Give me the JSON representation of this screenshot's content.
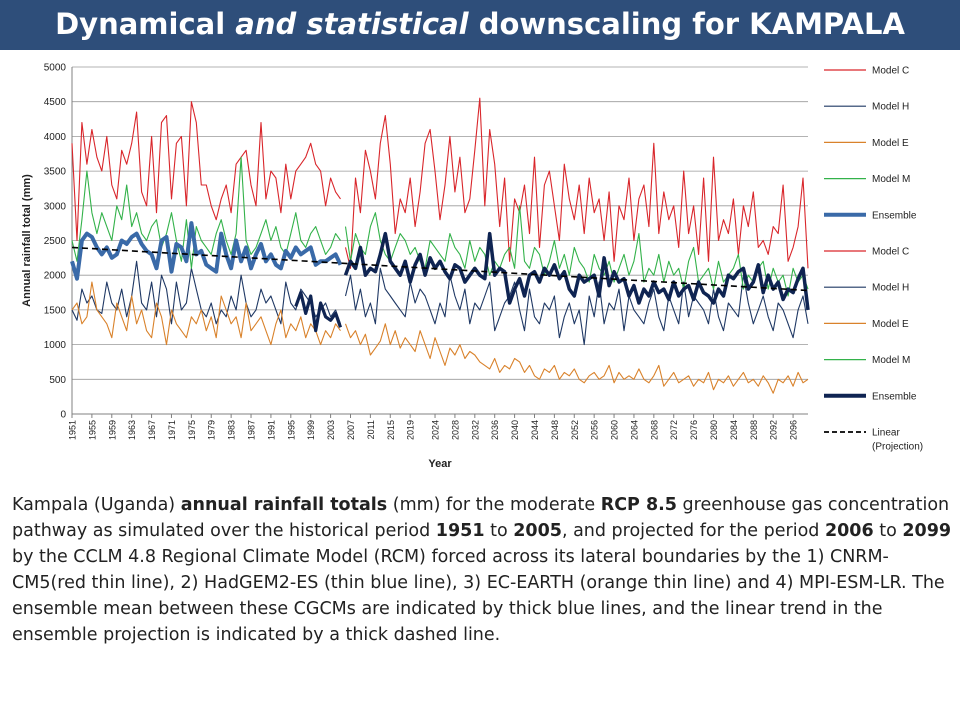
{
  "title": {
    "part1": "Dynamical ",
    "part2": "and statistical",
    "part3": " downscaling for KAMPALA"
  },
  "caption": {
    "t1": "Kampala (Uganda) ",
    "b1": "annual rainfall totals",
    "t2": " (mm) for the moderate ",
    "b2": "RCP 8.5",
    "t3": " greenhouse gas concentration pathway as simulated over the historical period ",
    "b3": "1951",
    "t4": " to ",
    "b4": "2005",
    "t5": ", and projected for the period ",
    "b5": "2006",
    "t6": " to ",
    "b6": "2099",
    "t7": " by the CCLM 4.8 Regional Climate Model (RCM) forced across its lateral boundaries by the 1) CNRM-CM5(red thin line), 2) HadGEM2-ES (thin blue line), 3) EC-EARTH (orange thin line) and 4) MPI-ESM-LR. The ensemble mean between these CGCMs are indicated by thick blue lines, and the linear trend in the ensemble projection is indicated by a thick dashed line."
  },
  "chart_data": {
    "type": "line",
    "xlabel": "Year",
    "ylabel": "Annual rainfall total (mm)",
    "xlim": [
      1951,
      2099
    ],
    "ylim": [
      0,
      5000
    ],
    "yticks": [
      0,
      500,
      1000,
      1500,
      2000,
      2500,
      3000,
      3500,
      4000,
      4500,
      5000
    ],
    "xticks": [
      1951,
      1955,
      1959,
      1963,
      1967,
      1971,
      1975,
      1979,
      1983,
      1987,
      1991,
      1995,
      1999,
      2003,
      2007,
      2011,
      2015,
      2019,
      2024,
      2028,
      2032,
      2036,
      2040,
      2044,
      2048,
      2052,
      2056,
      2060,
      2064,
      2068,
      2072,
      2076,
      2080,
      2084,
      2088,
      2092,
      2096
    ],
    "grid": "horizontal",
    "legend_position": "right",
    "legend": [
      {
        "name": "Model C",
        "color": "#d9262b",
        "style": "thin"
      },
      {
        "name": "Model H",
        "color": "#1f3864",
        "style": "thin"
      },
      {
        "name": "Model E",
        "color": "#d9822b",
        "style": "thin"
      },
      {
        "name": "Model M",
        "color": "#33b24a",
        "style": "thin"
      },
      {
        "name": "Ensemble",
        "color": "#3a6aa8",
        "style": "thick"
      },
      {
        "name": "Model C",
        "color": "#d9262b",
        "style": "thin"
      },
      {
        "name": "Model H",
        "color": "#1f3864",
        "style": "thin"
      },
      {
        "name": "Model E",
        "color": "#d9822b",
        "style": "thin"
      },
      {
        "name": "Model M",
        "color": "#33b24a",
        "style": "thin"
      },
      {
        "name": "Ensemble",
        "color": "#0f2452",
        "style": "thick"
      },
      {
        "name": "Linear (Projection)",
        "color": "#000000",
        "style": "dashed"
      }
    ],
    "trend": {
      "x": [
        1951,
        2099
      ],
      "y": [
        2400,
        1780
      ]
    },
    "series": [
      {
        "name": "Model C",
        "color": "#d9262b",
        "width": 1.1,
        "period": "historical",
        "x_start": 1951,
        "y": [
          3900,
          2500,
          4200,
          3600,
          4100,
          3700,
          3500,
          4000,
          3300,
          3100,
          3800,
          3600,
          3900,
          4350,
          3200,
          3000,
          4000,
          2900,
          4200,
          4300,
          3100,
          3900,
          4000,
          3000,
          4500,
          4200,
          3300,
          3300,
          3000,
          2800,
          3100,
          3300,
          2900,
          3600,
          3700,
          3800,
          3300,
          3000,
          4200,
          3100,
          3500,
          3400,
          2900,
          3600,
          3100,
          3500,
          3600,
          3700,
          3900,
          3600,
          3500,
          3000,
          3400,
          3200,
          3100
        ]
      },
      {
        "name": "Model H",
        "color": "#1f3864",
        "width": 1.1,
        "period": "historical",
        "x_start": 1951,
        "y": [
          1500,
          1350,
          1800,
          1600,
          1700,
          1500,
          1450,
          1900,
          1600,
          1500,
          1800,
          1400,
          1700,
          2200,
          1600,
          1500,
          1900,
          1400,
          2000,
          1800,
          1300,
          1900,
          1500,
          1600,
          2100,
          1800,
          1500,
          1400,
          1600,
          1300,
          1500,
          1400,
          1700,
          1500,
          2000,
          1600,
          1400,
          1500,
          1800,
          1600,
          1700,
          1500,
          1300,
          1900,
          1600,
          1500,
          1800,
          1700,
          1600,
          1400,
          1500,
          1600,
          1400,
          1500,
          1300
        ]
      },
      {
        "name": "Model E",
        "color": "#d9822b",
        "width": 1.1,
        "period": "historical",
        "x_start": 1951,
        "y": [
          1500,
          1600,
          1300,
          1400,
          1900,
          1500,
          1400,
          1300,
          1100,
          1600,
          1400,
          1200,
          1700,
          1300,
          1500,
          1200,
          1100,
          1600,
          1400,
          1000,
          1500,
          1300,
          1200,
          1100,
          1400,
          1300,
          1500,
          1200,
          1400,
          1100,
          1700,
          1500,
          1300,
          1400,
          1100,
          1600,
          1200,
          1300,
          1400,
          1200,
          1000,
          1300,
          1500,
          1100,
          1300,
          1200,
          1400,
          1100,
          1300,
          1200,
          1000,
          1200,
          1100,
          1300,
          1200
        ]
      },
      {
        "name": "Model M",
        "color": "#33b24a",
        "width": 1.1,
        "period": "historical",
        "x_start": 1951,
        "y": [
          2500,
          2200,
          2800,
          3500,
          2900,
          2600,
          2900,
          2700,
          2500,
          3000,
          2800,
          3300,
          2700,
          2900,
          2600,
          2500,
          2700,
          2800,
          2400,
          2600,
          2900,
          2500,
          2200,
          2800,
          2100,
          2700,
          2500,
          2400,
          2300,
          2600,
          2800,
          2500,
          2300,
          2600,
          3700,
          2500,
          2300,
          2400,
          2600,
          2800,
          2500,
          2700,
          2400,
          2300,
          2600,
          2900,
          2500,
          2400,
          2600,
          2700,
          2500,
          2300,
          2400,
          2600,
          2500
        ]
      },
      {
        "name": "Ensemble",
        "color": "#3a6aa8",
        "width": 4,
        "period": "historical",
        "x_start": 1951,
        "y": [
          2200,
          1950,
          2500,
          2600,
          2550,
          2400,
          2300,
          2400,
          2250,
          2300,
          2500,
          2450,
          2550,
          2600,
          2450,
          2350,
          2300,
          2100,
          2500,
          2550,
          2050,
          2450,
          2400,
          2200,
          2750,
          2300,
          2350,
          2150,
          2100,
          2050,
          2600,
          2300,
          2100,
          2500,
          2200,
          2400,
          2100,
          2300,
          2450,
          2200,
          2300,
          2150,
          2100,
          2350,
          2250,
          2400,
          2300,
          2350,
          2400,
          2150,
          2200,
          2200,
          2250,
          2300,
          2150
        ]
      },
      {
        "name": "Ensemble",
        "color": "#0f2452",
        "width": 3.2,
        "period": "historical-overlay",
        "x_start": 1996,
        "y": [
          1550,
          1750,
          1450,
          1700,
          1200,
          1600,
          1400,
          1350,
          1450,
          1250
        ]
      },
      {
        "name": "Model C",
        "color": "#d9262b",
        "width": 1.1,
        "period": "projection",
        "x_start": 2006,
        "y": [
          2400,
          2100,
          3400,
          2900,
          3800,
          3500,
          3100,
          3900,
          4300,
          3600,
          2600,
          3100,
          2900,
          3400,
          2700,
          3200,
          3900,
          4100,
          3500,
          2800,
          3300,
          4000,
          3200,
          3700,
          2900,
          3100,
          3800,
          4550,
          3000,
          4100,
          3600,
          2700,
          3400,
          2200,
          3100,
          2900,
          3300,
          2600,
          3700,
          2400,
          3300,
          3500,
          3000,
          2500,
          3600,
          3100,
          2800,
          3300,
          2600,
          3400,
          2900,
          3100,
          2500,
          3200,
          2200,
          3000,
          2800,
          3400,
          2500,
          3100,
          3300,
          2700,
          3900,
          2600,
          3200,
          2800,
          3000,
          2400,
          3500,
          2600,
          3000,
          2300,
          3400,
          2200,
          3700,
          2500,
          2800,
          2600,
          3100,
          2300,
          3000,
          2700,
          3200,
          2400,
          2500,
          2300,
          2700,
          2600,
          3300,
          2200,
          2400,
          2700,
          3400,
          2100
        ]
      },
      {
        "name": "Model H",
        "color": "#1f3864",
        "width": 1.1,
        "period": "projection",
        "x_start": 2006,
        "y": [
          1700,
          2000,
          1500,
          1800,
          1400,
          1600,
          1300,
          2100,
          1800,
          1700,
          1600,
          1500,
          1400,
          1900,
          1600,
          1800,
          1700,
          1500,
          1300,
          1600,
          1400,
          2000,
          1700,
          1500,
          1800,
          1300,
          1600,
          1500,
          1700,
          1900,
          1200,
          1400,
          1600,
          1700,
          1900,
          1500,
          1200,
          1800,
          1400,
          1300,
          1600,
          1500,
          1700,
          1100,
          1400,
          1600,
          1300,
          1500,
          1000,
          1700,
          1400,
          1900,
          1300,
          1600,
          1500,
          1800,
          1200,
          1700,
          1500,
          1400,
          1300,
          1600,
          1800,
          1400,
          1200,
          1700,
          1500,
          1300,
          1900,
          1400,
          1700,
          1600,
          1500,
          1300,
          1800,
          1400,
          1200,
          1600,
          1500,
          1400,
          2000,
          1600,
          1300,
          1500,
          1700,
          1400,
          1200,
          1600,
          1500,
          1300,
          1100,
          1500,
          1700,
          1300
        ]
      },
      {
        "name": "Model E",
        "color": "#d9822b",
        "width": 1.1,
        "period": "projection",
        "x_start": 2006,
        "y": [
          1300,
          1100,
          1200,
          1000,
          1150,
          850,
          950,
          1050,
          1300,
          1000,
          1200,
          950,
          1100,
          1000,
          900,
          1200,
          1000,
          800,
          1100,
          900,
          700,
          950,
          850,
          1000,
          800,
          900,
          850,
          750,
          700,
          650,
          800,
          600,
          700,
          650,
          800,
          750,
          600,
          700,
          550,
          500,
          650,
          600,
          700,
          500,
          600,
          550,
          650,
          500,
          450,
          550,
          600,
          500,
          550,
          700,
          450,
          600,
          500,
          550,
          500,
          650,
          500,
          450,
          550,
          700,
          400,
          500,
          600,
          450,
          500,
          550,
          400,
          500,
          450,
          600,
          350,
          500,
          450,
          550,
          400,
          500,
          600,
          450,
          500,
          400,
          550,
          450,
          300,
          500,
          450,
          550,
          400,
          600,
          450,
          500
        ]
      },
      {
        "name": "Model M",
        "color": "#33b24a",
        "width": 1.1,
        "period": "projection",
        "x_start": 2006,
        "y": [
          2700,
          2200,
          2600,
          2400,
          2300,
          2700,
          2900,
          2500,
          2300,
          2200,
          2400,
          2600,
          2500,
          2300,
          2400,
          2200,
          2100,
          2500,
          2400,
          2300,
          2200,
          2600,
          2400,
          2300,
          2100,
          2500,
          2200,
          2400,
          2300,
          2000,
          2200,
          2100,
          2300,
          2400,
          2100,
          3000,
          2200,
          2100,
          2400,
          2300,
          2000,
          2200,
          2500,
          2100,
          2300,
          2000,
          2400,
          2200,
          2100,
          1900,
          2300,
          2100,
          2000,
          2200,
          1900,
          2100,
          2300,
          2000,
          2200,
          2600,
          1900,
          2100,
          2000,
          2300,
          1900,
          2200,
          2000,
          2100,
          1800,
          2200,
          2400,
          1900,
          2000,
          2100,
          1800,
          2200,
          1900,
          2000,
          2100,
          2300,
          1800,
          2000,
          1900,
          2100,
          2200,
          1800,
          2100,
          1900,
          2000,
          1700,
          2100,
          1900,
          2000,
          1800
        ]
      },
      {
        "name": "Ensemble",
        "color": "#0f2452",
        "width": 3.5,
        "period": "projection",
        "x_start": 2006,
        "y": [
          2000,
          2200,
          2100,
          2400,
          2000,
          2100,
          2050,
          2300,
          2600,
          2200,
          2100,
          2000,
          2200,
          1900,
          2150,
          2300,
          2000,
          2250,
          2100,
          2200,
          2050,
          1950,
          2150,
          2100,
          1900,
          2000,
          2100,
          2000,
          1950,
          2600,
          2000,
          2100,
          2050,
          1600,
          1800,
          1950,
          1700,
          2000,
          2050,
          1900,
          2100,
          2000,
          2150,
          1950,
          2050,
          1800,
          1700,
          2000,
          1900,
          1950,
          2000,
          1700,
          2250,
          1850,
          2050,
          1900,
          1950,
          1700,
          1850,
          1600,
          1800,
          1700,
          1900,
          1750,
          1800,
          1650,
          1900,
          1700,
          1800,
          1850,
          1650,
          1900,
          1750,
          1700,
          1600,
          1800,
          1700,
          2000,
          1950,
          2050,
          2100,
          1800,
          1900,
          2150,
          1750,
          2000,
          1800,
          1900,
          1650,
          1800,
          1750,
          1950,
          2100,
          1500
        ]
      }
    ]
  }
}
